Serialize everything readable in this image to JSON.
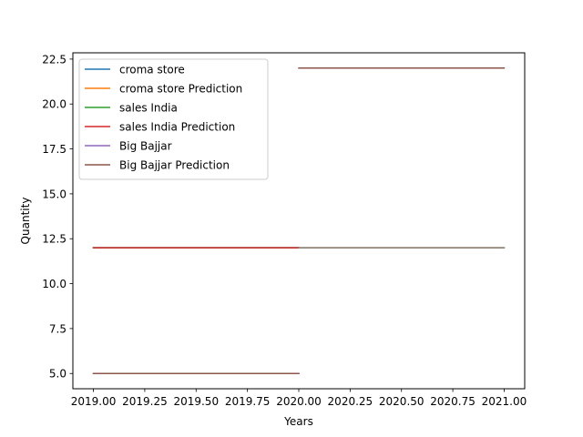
{
  "chart_data": {
    "type": "line",
    "title": "",
    "xlabel": "Years",
    "ylabel": "Quantity",
    "xlim": [
      2018.9,
      2021.1
    ],
    "ylim": [
      4.15,
      22.85
    ],
    "xticks": [
      2019.0,
      2019.25,
      2019.5,
      2019.75,
      2020.0,
      2020.25,
      2020.5,
      2020.75,
      2021.0
    ],
    "xtick_labels": [
      "2019.00",
      "2019.25",
      "2019.50",
      "2019.75",
      "2020.00",
      "2020.25",
      "2020.50",
      "2020.75",
      "2021.00"
    ],
    "yticks": [
      5.0,
      7.5,
      10.0,
      12.5,
      15.0,
      17.5,
      20.0,
      22.5
    ],
    "ytick_labels": [
      "5.0",
      "7.5",
      "10.0",
      "12.5",
      "15.0",
      "17.5",
      "20.0",
      "22.5"
    ],
    "grid": false,
    "legend_position": "top-left",
    "series": [
      {
        "name": "croma store",
        "color": "#1f77b4",
        "x": [
          2019.0,
          2020.0
        ],
        "y": [
          12,
          12
        ]
      },
      {
        "name": "croma store Prediction",
        "color": "#ff7f0e",
        "x": [
          2020.0,
          2021.0
        ],
        "y": [
          12,
          12
        ]
      },
      {
        "name": "sales India",
        "color": "#2ca02c",
        "x": [
          2019.0,
          2020.0
        ],
        "y": [
          12,
          12
        ]
      },
      {
        "name": "sales India Prediction",
        "color": "#d62728",
        "x": [
          2019.0,
          2020.0
        ],
        "y": [
          12,
          12
        ]
      },
      {
        "name": "Big Bajjar",
        "color": "#9467bd",
        "x": [
          2019.0,
          2020.0
        ],
        "y": [
          5,
          5
        ]
      },
      {
        "name": "Big Bajjar Prediction",
        "color": "#8c564b",
        "x": [
          2019.0,
          2020.0
        ],
        "y": [
          5,
          5
        ]
      },
      {
        "name": "",
        "color": "#8c564b",
        "x": [
          2020.0,
          2021.0
        ],
        "y": [
          22,
          22
        ]
      },
      {
        "name": "",
        "color": "#7f7f7f",
        "x": [
          2020.0,
          2021.0
        ],
        "y": [
          12,
          12
        ]
      }
    ]
  }
}
